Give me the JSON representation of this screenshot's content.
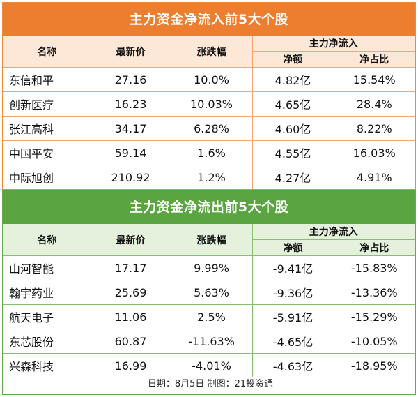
{
  "inflow": {
    "title": "主力资金净流入前5大个股",
    "headers": {
      "name": "名称",
      "price": "最新价",
      "change": "涨跌幅",
      "group": "主力净流入",
      "net": "净额",
      "ratio": "净占比"
    },
    "rows": [
      {
        "name": "东信和平",
        "price": "27.16",
        "change": "10.0%",
        "net": "4.82亿",
        "ratio": "15.54%"
      },
      {
        "name": "创新医疗",
        "price": "16.23",
        "change": "10.03%",
        "net": "4.65亿",
        "ratio": "28.4%"
      },
      {
        "name": "张江高科",
        "price": "34.17",
        "change": "6.28%",
        "net": "4.60亿",
        "ratio": "8.22%"
      },
      {
        "name": "中国平安",
        "price": "59.14",
        "change": "1.6%",
        "net": "4.55亿",
        "ratio": "16.03%"
      },
      {
        "name": "中际旭创",
        "price": "210.92",
        "change": "1.2%",
        "net": "4.27亿",
        "ratio": "4.91%"
      }
    ]
  },
  "outflow": {
    "title": "主力资金净流出前5大个股",
    "headers": {
      "name": "名称",
      "price": "最新价",
      "change": "涨跌幅",
      "group": "主力净流入",
      "net": "净额",
      "ratio": "净占比"
    },
    "rows": [
      {
        "name": "山河智能",
        "price": "17.17",
        "change": "9.99%",
        "net": "-9.41亿",
        "ratio": "-15.83%"
      },
      {
        "name": "翰宇药业",
        "price": "25.69",
        "change": "5.63%",
        "net": "-9.36亿",
        "ratio": "-13.36%"
      },
      {
        "name": "航天电子",
        "price": "11.06",
        "change": "2.5%",
        "net": "-5.91亿",
        "ratio": "-15.29%"
      },
      {
        "name": "东芯股份",
        "price": "60.87",
        "change": "-11.63%",
        "net": "-4.65亿",
        "ratio": "-10.05%"
      },
      {
        "name": "兴森科技",
        "price": "16.99",
        "change": "-4.01%",
        "net": "-4.63亿",
        "ratio": "-18.95%"
      }
    ]
  },
  "footer": "日期：8月5日 制图：21投资通",
  "colors": {
    "inflow_accent": "#ee7e2f",
    "outflow_accent": "#5aa441"
  }
}
